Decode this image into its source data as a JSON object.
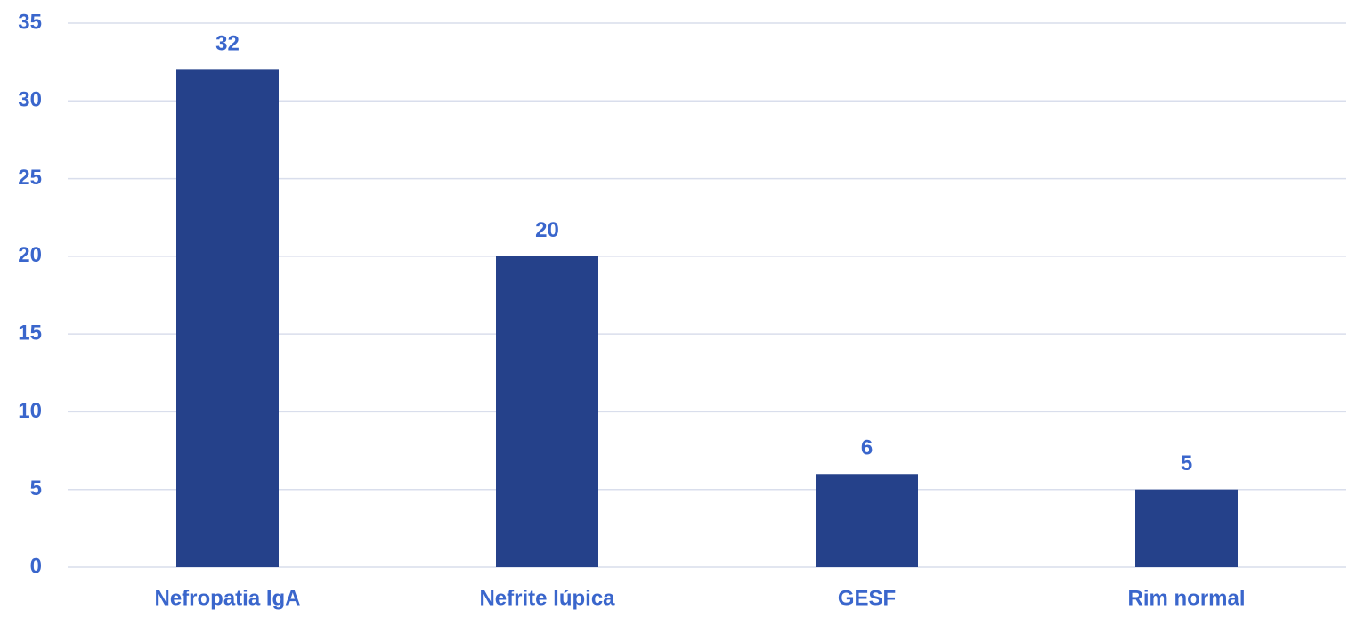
{
  "chart_data": {
    "type": "bar",
    "categories": [
      "Nefropatia IgA",
      "Nefrite lúpica",
      "GESF",
      "Rim normal"
    ],
    "values": [
      32,
      20,
      6,
      5
    ],
    "color": "#25418a",
    "ylim": [
      0,
      35
    ],
    "yticks": [
      0,
      5,
      10,
      15,
      20,
      25,
      30,
      35
    ],
    "grid": true
  }
}
